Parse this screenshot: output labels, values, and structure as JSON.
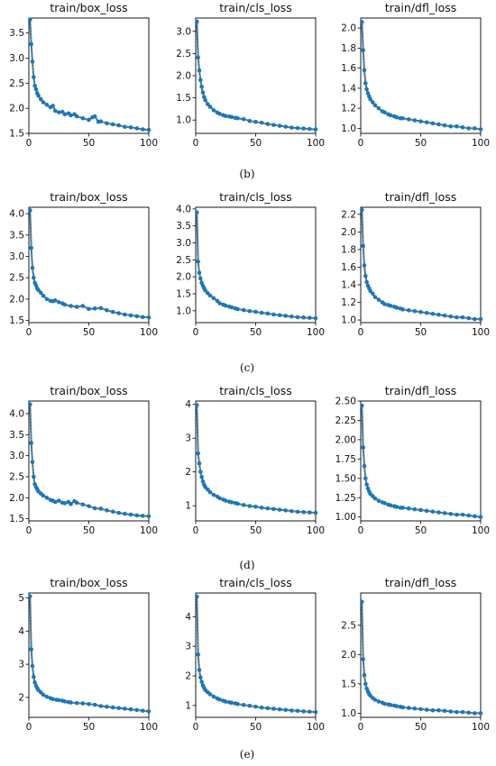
{
  "captions": [
    "(b)",
    "(c)",
    "(d)",
    "(e)"
  ],
  "colors": {
    "line": "#1f77b4",
    "marker": "#1f77b4",
    "smooth": "#ff7f0e"
  },
  "chart_data": [
    {
      "type": "line",
      "title": "train/box_loss",
      "xlim": [
        0,
        100
      ],
      "ylim": [
        1.5,
        3.8
      ],
      "xticks": [
        0,
        50,
        100
      ],
      "yticks": [
        1.5,
        2.0,
        2.5,
        3.0,
        3.5
      ],
      "series": [
        {
          "x": [
            1,
            2,
            3,
            4,
            5,
            6,
            7,
            8,
            10,
            12,
            15,
            18,
            20,
            22,
            25,
            28,
            30,
            33,
            35,
            38,
            40,
            45,
            50,
            53,
            55,
            58,
            60,
            65,
            70,
            75,
            80,
            85,
            90,
            95,
            100
          ],
          "y": [
            3.77,
            3.28,
            2.93,
            2.62,
            2.45,
            2.38,
            2.3,
            2.25,
            2.18,
            2.12,
            2.07,
            2.02,
            2.05,
            1.95,
            1.92,
            1.93,
            1.88,
            1.9,
            1.86,
            1.88,
            1.84,
            1.8,
            1.77,
            1.82,
            1.84,
            1.73,
            1.74,
            1.7,
            1.68,
            1.66,
            1.63,
            1.62,
            1.6,
            1.58,
            1.57
          ]
        }
      ]
    },
    {
      "type": "line",
      "title": "train/cls_loss",
      "xlim": [
        0,
        100
      ],
      "ylim": [
        0.7,
        3.3
      ],
      "xticks": [
        0,
        50,
        100
      ],
      "yticks": [
        1.0,
        1.5,
        2.0,
        2.5,
        3.0
      ],
      "series": [
        {
          "x": [
            1,
            2,
            3,
            4,
            5,
            6,
            7,
            8,
            10,
            12,
            15,
            18,
            20,
            23,
            25,
            28,
            30,
            33,
            35,
            40,
            45,
            50,
            55,
            60,
            65,
            70,
            75,
            80,
            85,
            90,
            95,
            100
          ],
          "y": [
            3.22,
            2.41,
            2.12,
            1.9,
            1.75,
            1.62,
            1.52,
            1.45,
            1.36,
            1.3,
            1.22,
            1.17,
            1.14,
            1.11,
            1.09,
            1.08,
            1.07,
            1.05,
            1.04,
            1.02,
            0.98,
            0.96,
            0.94,
            0.91,
            0.89,
            0.87,
            0.85,
            0.83,
            0.82,
            0.81,
            0.8,
            0.79
          ]
        }
      ]
    },
    {
      "type": "line",
      "title": "train/dfl_loss",
      "xlim": [
        0,
        100
      ],
      "ylim": [
        0.95,
        2.1
      ],
      "xticks": [
        0,
        50,
        100
      ],
      "yticks": [
        1.0,
        1.2,
        1.4,
        1.6,
        1.8,
        2.0
      ],
      "series": [
        {
          "x": [
            1,
            2,
            3,
            4,
            5,
            6,
            7,
            8,
            10,
            12,
            15,
            18,
            20,
            23,
            25,
            28,
            30,
            33,
            35,
            40,
            45,
            50,
            55,
            60,
            65,
            70,
            75,
            80,
            85,
            90,
            95,
            100
          ],
          "y": [
            2.06,
            1.78,
            1.58,
            1.45,
            1.39,
            1.35,
            1.32,
            1.29,
            1.26,
            1.23,
            1.2,
            1.17,
            1.16,
            1.14,
            1.13,
            1.12,
            1.11,
            1.1,
            1.1,
            1.09,
            1.08,
            1.07,
            1.06,
            1.05,
            1.04,
            1.03,
            1.02,
            1.02,
            1.01,
            1.0,
            1.0,
            0.99
          ]
        }
      ]
    },
    {
      "type": "line",
      "title": "train/box_loss",
      "xlim": [
        0,
        100
      ],
      "ylim": [
        1.45,
        4.15
      ],
      "xticks": [
        0,
        50,
        100
      ],
      "yticks": [
        1.5,
        2.0,
        2.5,
        3.0,
        3.5,
        4.0
      ],
      "series": [
        {
          "x": [
            1,
            2,
            3,
            4,
            5,
            6,
            7,
            8,
            10,
            12,
            15,
            18,
            20,
            22,
            25,
            28,
            30,
            35,
            40,
            45,
            50,
            55,
            60,
            65,
            70,
            75,
            80,
            85,
            90,
            95,
            100
          ],
          "y": [
            4.08,
            3.2,
            2.73,
            2.5,
            2.38,
            2.32,
            2.25,
            2.21,
            2.15,
            2.08,
            2.0,
            1.96,
            1.95,
            1.97,
            1.93,
            1.9,
            1.87,
            1.84,
            1.82,
            1.84,
            1.77,
            1.78,
            1.79,
            1.74,
            1.7,
            1.67,
            1.64,
            1.62,
            1.6,
            1.58,
            1.57
          ]
        }
      ]
    },
    {
      "type": "line",
      "title": "train/cls_loss",
      "xlim": [
        0,
        100
      ],
      "ylim": [
        0.65,
        4.05
      ],
      "xticks": [
        0,
        50,
        100
      ],
      "yticks": [
        1.0,
        1.5,
        2.0,
        2.5,
        3.0,
        3.5,
        4.0
      ],
      "series": [
        {
          "x": [
            1,
            2,
            3,
            4,
            5,
            6,
            7,
            8,
            10,
            12,
            15,
            18,
            20,
            23,
            25,
            28,
            30,
            33,
            35,
            40,
            45,
            50,
            55,
            60,
            65,
            70,
            75,
            80,
            85,
            90,
            95,
            100
          ],
          "y": [
            3.9,
            2.45,
            2.12,
            1.95,
            1.82,
            1.74,
            1.67,
            1.6,
            1.52,
            1.45,
            1.37,
            1.29,
            1.22,
            1.18,
            1.15,
            1.12,
            1.1,
            1.07,
            1.05,
            1.02,
            0.99,
            0.97,
            0.94,
            0.92,
            0.89,
            0.87,
            0.85,
            0.83,
            0.81,
            0.8,
            0.79,
            0.78
          ]
        }
      ]
    },
    {
      "type": "line",
      "title": "train/dfl_loss",
      "xlim": [
        0,
        100
      ],
      "ylim": [
        0.97,
        2.28
      ],
      "xticks": [
        0,
        50,
        100
      ],
      "yticks": [
        1.0,
        1.2,
        1.4,
        1.6,
        1.8,
        2.0,
        2.2
      ],
      "series": [
        {
          "x": [
            1,
            2,
            3,
            4,
            5,
            6,
            7,
            8,
            10,
            12,
            15,
            18,
            20,
            23,
            25,
            28,
            30,
            33,
            35,
            40,
            45,
            50,
            55,
            60,
            65,
            70,
            75,
            80,
            85,
            90,
            95,
            100
          ],
          "y": [
            2.25,
            1.84,
            1.62,
            1.5,
            1.43,
            1.39,
            1.36,
            1.33,
            1.3,
            1.26,
            1.23,
            1.2,
            1.18,
            1.17,
            1.16,
            1.15,
            1.14,
            1.13,
            1.12,
            1.11,
            1.1,
            1.09,
            1.08,
            1.07,
            1.06,
            1.05,
            1.04,
            1.03,
            1.03,
            1.02,
            1.01,
            1.01
          ]
        }
      ]
    },
    {
      "type": "line",
      "title": "train/box_loss",
      "xlim": [
        0,
        100
      ],
      "ylim": [
        1.45,
        4.3
      ],
      "xticks": [
        0,
        50,
        100
      ],
      "yticks": [
        1.5,
        2.0,
        2.5,
        3.0,
        3.5,
        4.0
      ],
      "series": [
        {
          "x": [
            1,
            2,
            3,
            4,
            5,
            6,
            7,
            8,
            10,
            12,
            15,
            18,
            20,
            22,
            25,
            28,
            30,
            33,
            35,
            38,
            40,
            45,
            50,
            55,
            60,
            65,
            70,
            75,
            80,
            85,
            90,
            95,
            100
          ],
          "y": [
            4.22,
            3.3,
            2.85,
            2.5,
            2.32,
            2.25,
            2.2,
            2.15,
            2.1,
            2.05,
            2.0,
            1.95,
            1.93,
            1.9,
            1.93,
            1.88,
            1.87,
            1.9,
            1.85,
            1.92,
            1.88,
            1.84,
            1.8,
            1.75,
            1.74,
            1.7,
            1.67,
            1.64,
            1.62,
            1.6,
            1.58,
            1.57,
            1.56
          ]
        }
      ]
    },
    {
      "type": "line",
      "title": "train/cls_loss",
      "xlim": [
        0,
        100
      ],
      "ylim": [
        0.55,
        4.1
      ],
      "xticks": [
        0,
        50,
        100
      ],
      "yticks": [
        1,
        2,
        3,
        4
      ],
      "series": [
        {
          "x": [
            1,
            2,
            3,
            4,
            5,
            6,
            7,
            8,
            10,
            12,
            15,
            18,
            20,
            23,
            25,
            28,
            30,
            33,
            35,
            40,
            45,
            50,
            55,
            60,
            65,
            70,
            75,
            80,
            85,
            90,
            95,
            100
          ],
          "y": [
            3.98,
            2.55,
            2.25,
            2.0,
            1.85,
            1.72,
            1.62,
            1.55,
            1.48,
            1.4,
            1.32,
            1.27,
            1.22,
            1.18,
            1.15,
            1.12,
            1.1,
            1.08,
            1.06,
            1.02,
            0.99,
            0.97,
            0.94,
            0.92,
            0.9,
            0.88,
            0.86,
            0.84,
            0.82,
            0.81,
            0.8,
            0.79
          ]
        }
      ]
    },
    {
      "type": "line",
      "title": "train/dfl_loss",
      "xlim": [
        0,
        100
      ],
      "ylim": [
        0.95,
        2.5
      ],
      "xticks": [
        0,
        50,
        100
      ],
      "yticks": [
        1.0,
        1.25,
        1.5,
        1.75,
        2.0,
        2.25,
        2.5
      ],
      "series": [
        {
          "x": [
            1,
            2,
            3,
            4,
            5,
            6,
            7,
            8,
            10,
            12,
            15,
            18,
            20,
            23,
            25,
            28,
            30,
            33,
            35,
            40,
            45,
            50,
            55,
            60,
            65,
            70,
            75,
            80,
            85,
            90,
            95,
            100
          ],
          "y": [
            2.44,
            1.9,
            1.66,
            1.5,
            1.42,
            1.37,
            1.33,
            1.3,
            1.27,
            1.24,
            1.21,
            1.19,
            1.18,
            1.16,
            1.15,
            1.14,
            1.13,
            1.12,
            1.12,
            1.11,
            1.1,
            1.09,
            1.08,
            1.07,
            1.06,
            1.05,
            1.04,
            1.03,
            1.03,
            1.02,
            1.01,
            1.0
          ]
        }
      ]
    },
    {
      "type": "line",
      "title": "train/box_loss",
      "xlim": [
        0,
        100
      ],
      "ylim": [
        1.4,
        5.15
      ],
      "xticks": [
        0,
        50,
        100
      ],
      "yticks": [
        2,
        3,
        4,
        5
      ],
      "series": [
        {
          "x": [
            1,
            2,
            3,
            4,
            5,
            6,
            7,
            8,
            10,
            12,
            15,
            18,
            20,
            23,
            25,
            28,
            30,
            33,
            35,
            40,
            45,
            50,
            55,
            60,
            65,
            70,
            75,
            80,
            85,
            90,
            95,
            100
          ],
          "y": [
            5.05,
            3.45,
            2.95,
            2.62,
            2.45,
            2.35,
            2.28,
            2.22,
            2.15,
            2.08,
            2.02,
            1.98,
            1.95,
            1.93,
            1.92,
            1.9,
            1.88,
            1.86,
            1.85,
            1.83,
            1.82,
            1.8,
            1.78,
            1.74,
            1.72,
            1.7,
            1.68,
            1.66,
            1.64,
            1.62,
            1.6,
            1.58
          ]
        }
      ]
    },
    {
      "type": "line",
      "title": "train/cls_loss",
      "xlim": [
        0,
        100
      ],
      "ylim": [
        0.6,
        4.8
      ],
      "xticks": [
        0,
        50,
        100
      ],
      "yticks": [
        1,
        2,
        3,
        4
      ],
      "series": [
        {
          "x": [
            1,
            2,
            3,
            4,
            5,
            6,
            7,
            8,
            10,
            12,
            15,
            18,
            20,
            23,
            25,
            28,
            30,
            33,
            35,
            40,
            45,
            50,
            55,
            60,
            65,
            70,
            75,
            80,
            85,
            90,
            95,
            100
          ],
          "y": [
            4.68,
            2.72,
            2.2,
            1.95,
            1.8,
            1.68,
            1.6,
            1.52,
            1.45,
            1.38,
            1.3,
            1.24,
            1.2,
            1.16,
            1.13,
            1.11,
            1.09,
            1.07,
            1.05,
            1.02,
            0.99,
            0.96,
            0.93,
            0.91,
            0.89,
            0.87,
            0.85,
            0.83,
            0.82,
            0.8,
            0.79,
            0.78
          ]
        }
      ]
    },
    {
      "type": "line",
      "title": "train/dfl_loss",
      "xlim": [
        0,
        100
      ],
      "ylim": [
        0.93,
        3.05
      ],
      "xticks": [
        0,
        50,
        100
      ],
      "yticks": [
        1.0,
        1.5,
        2.0,
        2.5
      ],
      "series": [
        {
          "x": [
            1,
            2,
            3,
            4,
            5,
            6,
            7,
            8,
            10,
            12,
            15,
            18,
            20,
            23,
            25,
            28,
            30,
            33,
            35,
            40,
            45,
            50,
            55,
            60,
            65,
            70,
            75,
            80,
            85,
            90,
            95,
            100
          ],
          "y": [
            2.9,
            1.92,
            1.65,
            1.5,
            1.42,
            1.37,
            1.33,
            1.3,
            1.26,
            1.23,
            1.2,
            1.18,
            1.16,
            1.15,
            1.14,
            1.13,
            1.12,
            1.11,
            1.1,
            1.09,
            1.08,
            1.07,
            1.06,
            1.05,
            1.05,
            1.04,
            1.03,
            1.02,
            1.02,
            1.01,
            1.0,
            1.0
          ]
        }
      ]
    }
  ]
}
